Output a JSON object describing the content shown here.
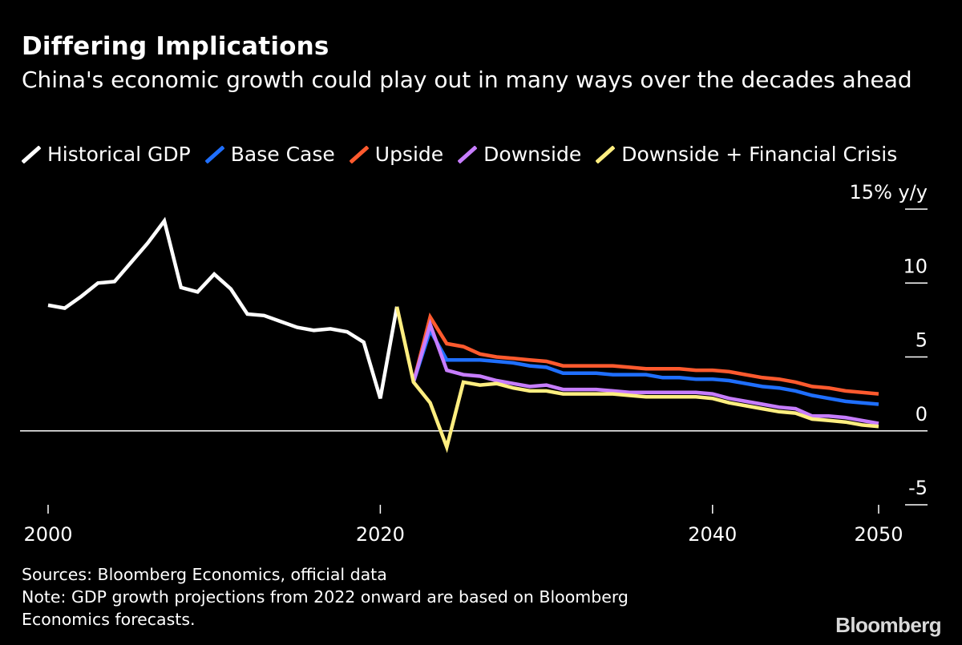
{
  "header": {
    "title": "Differing Implications",
    "subtitle": "China's economic growth could play out in many ways over the decades ahead"
  },
  "footer": {
    "sources": "Sources: Bloomberg Economics, official data",
    "note_line1": "Note: GDP growth projections from 2022 onward are based on Bloomberg",
    "note_line2": "Economics forecasts.",
    "brand": "Bloomberg"
  },
  "chart_data": {
    "type": "line",
    "title": "Differing Implications",
    "subtitle": "China's economic growth could play out in many ways over the decades ahead",
    "xlabel": "",
    "ylabel": "",
    "y_unit_label": "15% y/y",
    "xlim": [
      1999.5,
      2050.5
    ],
    "ylim": [
      -5,
      15
    ],
    "x_ticks": [
      2000,
      2020,
      2040,
      2050
    ],
    "x_tick_labels": [
      "2000",
      "2020",
      "2040",
      "2050"
    ],
    "y_ticks": [
      -5,
      0,
      5,
      10,
      15
    ],
    "y_tick_labels": [
      "-5",
      "0",
      "5",
      "10",
      "15% y/y"
    ],
    "grid": false,
    "zero_line": true,
    "legend_position": "top",
    "series": [
      {
        "name": "Historical GDP",
        "color": "#ffffff",
        "x": [
          2000,
          2001,
          2002,
          2003,
          2004,
          2005,
          2006,
          2007,
          2008,
          2009,
          2010,
          2011,
          2012,
          2013,
          2014,
          2015,
          2016,
          2017,
          2018,
          2019,
          2020,
          2021
        ],
        "y": [
          8.5,
          8.3,
          9.1,
          10.0,
          10.1,
          11.4,
          12.7,
          14.2,
          9.7,
          9.4,
          10.6,
          9.6,
          7.9,
          7.8,
          7.4,
          7.0,
          6.8,
          6.9,
          6.7,
          6.0,
          2.2,
          8.4
        ]
      },
      {
        "name": "Base Case",
        "color": "#1f6fff",
        "x": [
          2022,
          2023,
          2024,
          2025,
          2026,
          2027,
          2028,
          2029,
          2030,
          2031,
          2032,
          2033,
          2034,
          2035,
          2036,
          2037,
          2038,
          2039,
          2040,
          2041,
          2042,
          2043,
          2044,
          2045,
          2046,
          2047,
          2048,
          2049,
          2050
        ],
        "y": [
          3.3,
          6.8,
          4.8,
          4.8,
          4.8,
          4.7,
          4.6,
          4.4,
          4.3,
          3.9,
          3.9,
          3.9,
          3.8,
          3.8,
          3.8,
          3.6,
          3.6,
          3.5,
          3.5,
          3.4,
          3.2,
          3.0,
          2.9,
          2.7,
          2.4,
          2.2,
          2.0,
          1.9,
          1.8
        ]
      },
      {
        "name": "Upside",
        "color": "#ff5a2e",
        "x": [
          2022,
          2023,
          2024,
          2025,
          2026,
          2027,
          2028,
          2029,
          2030,
          2031,
          2032,
          2033,
          2034,
          2035,
          2036,
          2037,
          2038,
          2039,
          2040,
          2041,
          2042,
          2043,
          2044,
          2045,
          2046,
          2047,
          2048,
          2049,
          2050
        ],
        "y": [
          3.3,
          7.7,
          5.9,
          5.7,
          5.2,
          5.0,
          4.9,
          4.8,
          4.7,
          4.4,
          4.4,
          4.4,
          4.4,
          4.3,
          4.2,
          4.2,
          4.2,
          4.1,
          4.1,
          4.0,
          3.8,
          3.6,
          3.5,
          3.3,
          3.0,
          2.9,
          2.7,
          2.6,
          2.5
        ]
      },
      {
        "name": "Downside",
        "color": "#c77dff",
        "x": [
          2022,
          2023,
          2024,
          2025,
          2026,
          2027,
          2028,
          2029,
          2030,
          2031,
          2032,
          2033,
          2034,
          2035,
          2036,
          2037,
          2038,
          2039,
          2040,
          2041,
          2042,
          2043,
          2044,
          2045,
          2046,
          2047,
          2048,
          2049,
          2050
        ],
        "y": [
          3.3,
          7.2,
          4.1,
          3.8,
          3.7,
          3.4,
          3.2,
          3.0,
          3.1,
          2.8,
          2.8,
          2.8,
          2.7,
          2.6,
          2.6,
          2.6,
          2.6,
          2.6,
          2.5,
          2.2,
          2.0,
          1.8,
          1.6,
          1.5,
          1.0,
          1.0,
          0.9,
          0.7,
          0.5
        ]
      },
      {
        "name": "Downside + Financial Crisis",
        "color": "#ffee80",
        "x": [
          2021,
          2022,
          2023,
          2024,
          2025,
          2026,
          2027,
          2028,
          2029,
          2030,
          2031,
          2032,
          2033,
          2034,
          2035,
          2036,
          2037,
          2038,
          2039,
          2040,
          2041,
          2042,
          2043,
          2044,
          2045,
          2046,
          2047,
          2048,
          2049,
          2050
        ],
        "y": [
          8.4,
          3.3,
          1.9,
          -1.1,
          3.3,
          3.1,
          3.2,
          2.9,
          2.7,
          2.7,
          2.5,
          2.5,
          2.5,
          2.5,
          2.4,
          2.3,
          2.3,
          2.3,
          2.3,
          2.2,
          1.9,
          1.7,
          1.5,
          1.3,
          1.2,
          0.8,
          0.7,
          0.6,
          0.4,
          0.3
        ]
      }
    ]
  }
}
